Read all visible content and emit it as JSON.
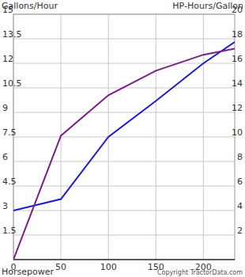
{
  "chart_data": {
    "type": "line",
    "y_label": "Gallons/Hour",
    "y2_label": "HP-Hours/Gallon",
    "x_label": "Horsepower",
    "annotations": [
      "Copyright TractorData.com"
    ],
    "x": [
      0,
      50,
      100,
      150,
      200,
      233
    ],
    "xlim": [
      0,
      233
    ],
    "xticks": [
      0,
      50,
      100,
      150,
      200
    ],
    "ylim": [
      0,
      15
    ],
    "yticks": [
      1.5,
      3,
      4.5,
      6,
      7.5,
      9,
      10.5,
      12,
      13.5,
      15
    ],
    "y2lim": [
      0,
      20
    ],
    "y2ticks": [
      2,
      4,
      6,
      8,
      10,
      12,
      14,
      16,
      18,
      20
    ],
    "grid": true,
    "series": [
      {
        "color": "#1a1ad0",
        "values": [
          3,
          3.7,
          7.5,
          9.7,
          12,
          13.3
        ]
      },
      {
        "color": "#7a1f86",
        "axis": "y2",
        "values": [
          0,
          10.1,
          13.4,
          15.4,
          16.7,
          17.2
        ]
      }
    ]
  }
}
